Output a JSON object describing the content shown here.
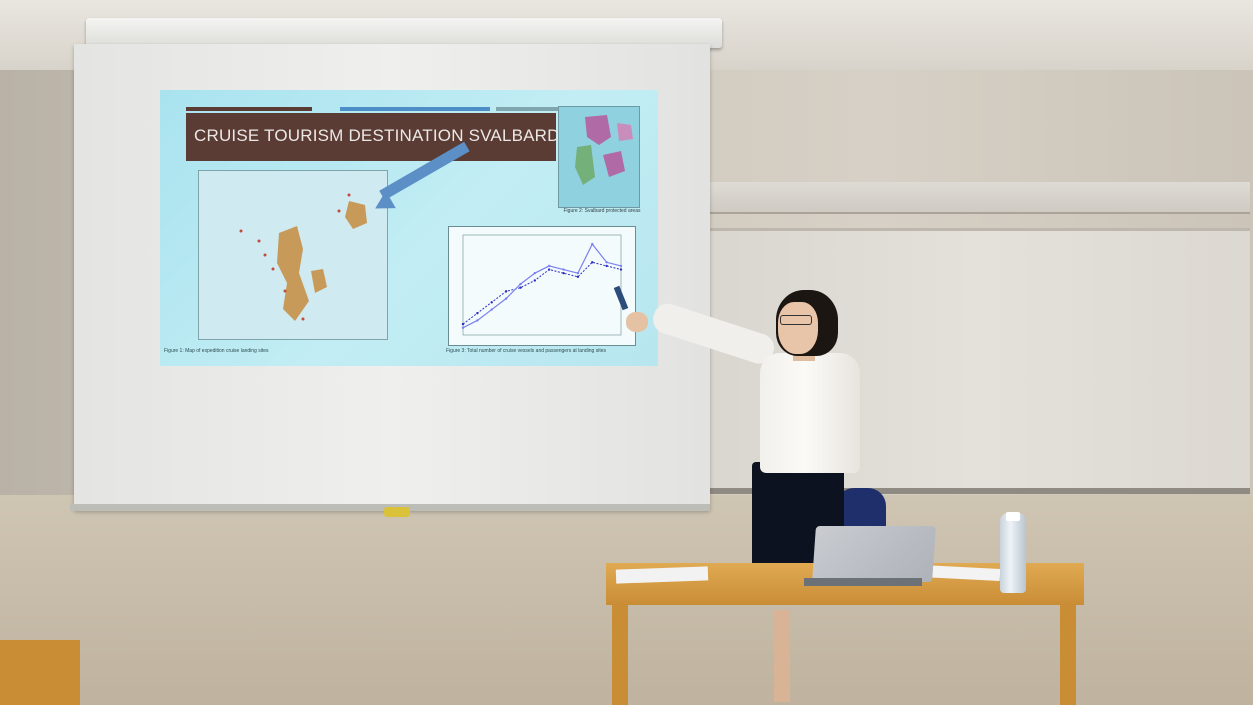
{
  "slide": {
    "title": "CRUISE TOURISM DESTINATION SVALBARD",
    "inset_caption": "Figure 2: Svalbard protected areas",
    "caption_left": "Figure 1: Map of expedition cruise landing sites",
    "caption_right": "Figure 3: Total number of cruise vessels and passengers at landing sites"
  },
  "colors": {
    "slide_bg": "#b7e6ef",
    "title_bar": "#5a3c34",
    "arrow": "#5b8fc6",
    "chart_line": "#2a2dbf"
  },
  "chart_data": {
    "type": "line",
    "series": [
      {
        "values": [
          3,
          6,
          9,
          12,
          13,
          15,
          18,
          17,
          16,
          20,
          19,
          18
        ]
      },
      {
        "values": [
          2,
          4,
          7,
          10,
          14,
          17,
          19,
          18,
          17,
          25,
          20,
          19
        ]
      }
    ]
  }
}
